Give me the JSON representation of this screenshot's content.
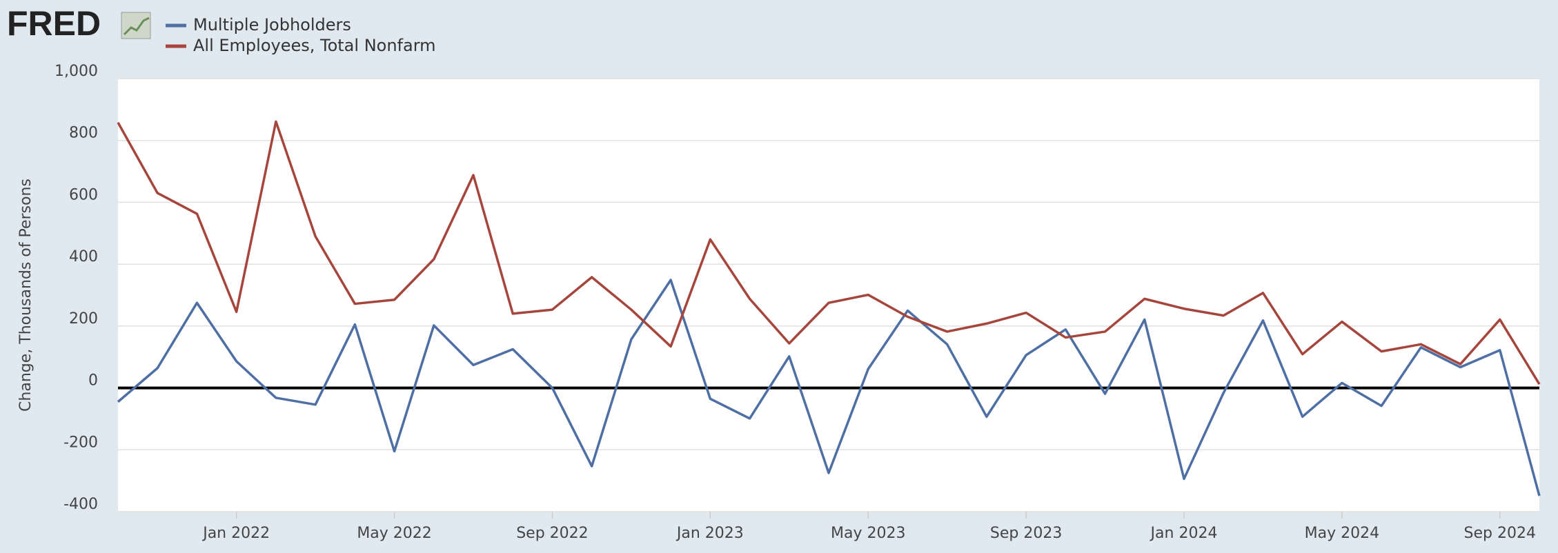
{
  "logo": "FRED",
  "chart_data": {
    "type": "line",
    "y_label": "Change, Thousands of Persons",
    "x": [
      "2021-10",
      "2021-11",
      "2021-12",
      "2022-01",
      "2022-02",
      "2022-03",
      "2022-04",
      "2022-05",
      "2022-06",
      "2022-07",
      "2022-08",
      "2022-09",
      "2022-10",
      "2022-11",
      "2022-12",
      "2023-01",
      "2023-02",
      "2023-03",
      "2023-04",
      "2023-05",
      "2023-06",
      "2023-07",
      "2023-08",
      "2023-09",
      "2023-10",
      "2023-11",
      "2023-12",
      "2024-01",
      "2024-02",
      "2024-03",
      "2024-04",
      "2024-05",
      "2024-06",
      "2024-07",
      "2024-08",
      "2024-09",
      "2024-10"
    ],
    "series": [
      {
        "name": "Multiple Jobholders",
        "color": "#4e6fa3",
        "values": [
          -45,
          64,
          275,
          86,
          -32,
          -54,
          205,
          -205,
          202,
          74,
          125,
          0,
          -253,
          157,
          349,
          -35,
          -99,
          102,
          -275,
          61,
          250,
          141,
          -93,
          106,
          189,
          -19,
          221,
          -294,
          -16,
          218,
          -93,
          16,
          -58,
          131,
          67,
          122,
          -349
        ]
      },
      {
        "name": "All Employees, Total Nonfarm",
        "color": "#a6453c",
        "values": [
          858,
          630,
          563,
          246,
          861,
          490,
          272,
          285,
          416,
          688,
          240,
          253,
          358,
          253,
          134,
          480,
          288,
          144,
          275,
          301,
          230,
          182,
          208,
          243,
          163,
          182,
          288,
          256,
          234,
          307,
          109,
          214,
          118,
          141,
          77,
          221,
          12
        ]
      }
    ],
    "ylim": [
      -400,
      1000
    ],
    "yticks": [
      -400,
      -200,
      0,
      200,
      400,
      600,
      800,
      {
        "value": 1000,
        "label": "1,000"
      }
    ],
    "xticks": [
      {
        "value": "2022-01",
        "label": "Jan 2022"
      },
      {
        "value": "2022-05",
        "label": "May 2022"
      },
      {
        "value": "2022-09",
        "label": "Sep 2022"
      },
      {
        "value": "2023-01",
        "label": "Jan 2023"
      },
      {
        "value": "2023-05",
        "label": "May 2023"
      },
      {
        "value": "2023-09",
        "label": "Sep 2023"
      },
      {
        "value": "2024-01",
        "label": "Jan 2024"
      },
      {
        "value": "2024-05",
        "label": "May 2024"
      },
      {
        "value": "2024-09",
        "label": "Sep 2024"
      }
    ],
    "grid": true,
    "legend": "top-left"
  }
}
